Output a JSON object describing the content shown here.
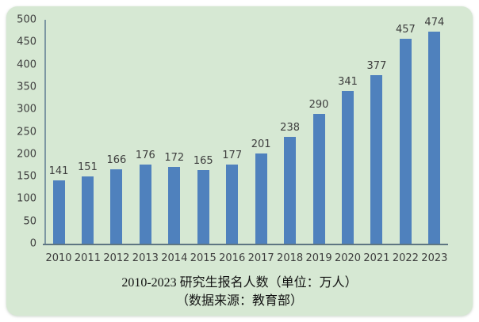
{
  "chart_data": {
    "type": "bar",
    "categories": [
      "2010",
      "2011",
      "2012",
      "2013",
      "2014",
      "2015",
      "2016",
      "2017",
      "2018",
      "2019",
      "2020",
      "2021",
      "2022",
      "2023"
    ],
    "values": [
      141,
      151,
      166,
      176,
      172,
      165,
      177,
      201,
      238,
      290,
      341,
      377,
      457,
      474
    ],
    "title_line1": "2010-2023 研究生报名人数（单位：万人）",
    "title_line2": "（数据来源：教育部）",
    "xlabel": "",
    "ylabel": "",
    "ylim": [
      0,
      500
    ],
    "ytick_step": 50,
    "grid": false,
    "legend": "none",
    "bar_labels_shown": true,
    "colors": {
      "background": "#d6e8d3",
      "bar": "#4f81bd",
      "y_axis_line": "#7d97a2",
      "x_axis_line": "#5e7682",
      "tick_label": "#3d3d3d",
      "title_text": "#121212",
      "page_background": "#ffffff"
    }
  }
}
